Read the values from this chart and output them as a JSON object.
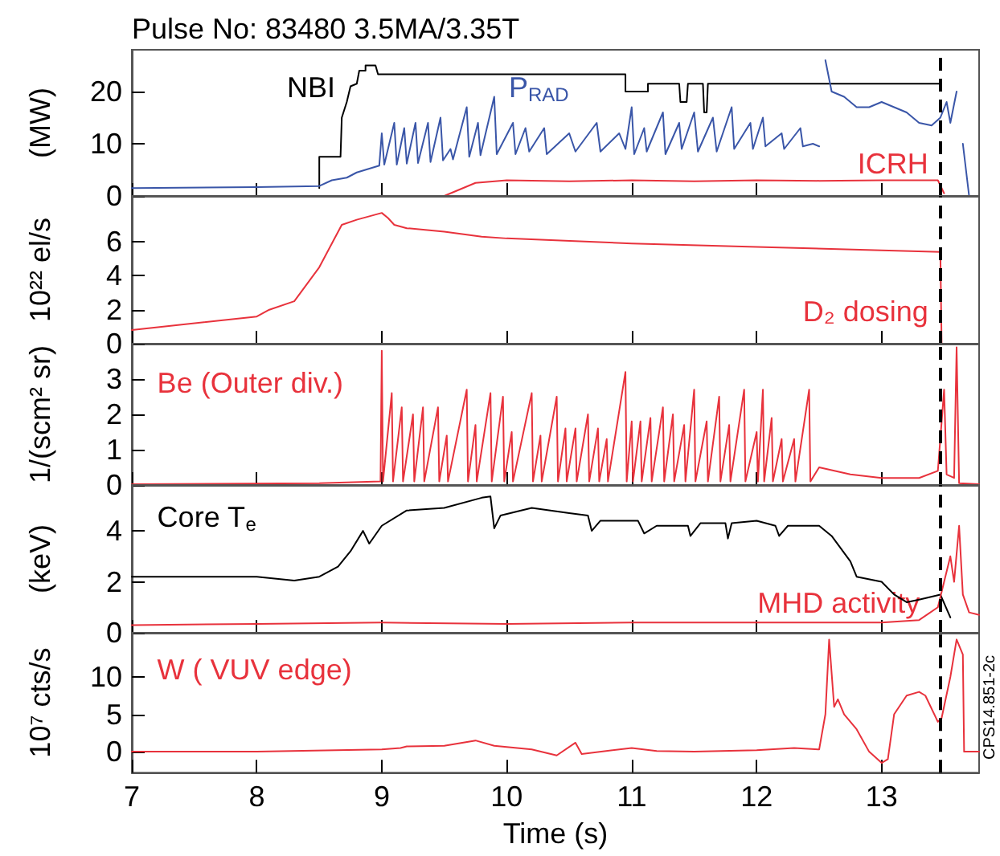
{
  "chart_data": [
    {
      "type": "line",
      "title": "Pulse No: 83480 3.5MA/3.35T",
      "ylabel": "(MW)",
      "xlim": [
        7,
        13.78
      ],
      "xticks": [
        7,
        8,
        9,
        10,
        11,
        12,
        13
      ],
      "ylim": [
        0,
        28
      ],
      "yticks": [
        0,
        10,
        20
      ],
      "tick_labels": "y",
      "grid": false,
      "ref_lines": [
        {
          "axis": "x",
          "value": 13.47,
          "color": "#000000",
          "line_style": "dashed"
        }
      ],
      "series": [
        {
          "name": "NBI",
          "color": "#000000",
          "x": [
            8.5,
            8.5,
            8.67,
            8.68,
            8.72,
            8.75,
            8.8,
            8.82,
            8.87,
            8.87,
            8.95,
            8.97,
            10.95,
            10.95,
            11.13,
            11.13,
            11.38,
            11.39,
            11.44,
            11.45,
            11.57,
            11.58,
            11.6,
            11.61,
            13.47
          ],
          "values": [
            1.5,
            7.5,
            7.5,
            15,
            18,
            21,
            21.5,
            24,
            24,
            25,
            25,
            23.3,
            23.3,
            20,
            20,
            21.5,
            21.5,
            18,
            18,
            21.5,
            21.5,
            16,
            16,
            21.5,
            21.5
          ]
        },
        {
          "name": "P$_{RAD}$",
          "color": "#3a56a8",
          "x": [
            7,
            8,
            8.5,
            8.6,
            8.72,
            8.8,
            8.98,
            9.0,
            9.02,
            9.1,
            9.12,
            9.18,
            9.2,
            9.27,
            9.29,
            9.37,
            9.39,
            9.47,
            9.49,
            9.55,
            9.57,
            9.68,
            9.7,
            9.77,
            9.79,
            9.9,
            9.92,
            10.05,
            10.07,
            10.15,
            10.18,
            10.3,
            10.32,
            10.5,
            10.55,
            10.72,
            10.75,
            10.9,
            10.95,
            11,
            11.02,
            11.1,
            11.12,
            11.25,
            11.27,
            11.38,
            11.4,
            11.5,
            11.53,
            11.65,
            11.68,
            11.8,
            11.82,
            11.95,
            11.97,
            12.05,
            12.07,
            12.2,
            12.22,
            12.35,
            12.37,
            12.45,
            12.5,
            12.52,
            12.55,
            12.6,
            12.7,
            12.8,
            12.9,
            13.0,
            13.1,
            13.2,
            13.3,
            13.4,
            13.47,
            13.52,
            13.55,
            13.6,
            13.62,
            13.65,
            13.7
          ],
          "values": [
            1.5,
            1.7,
            1.9,
            3,
            3.5,
            4.5,
            5.8,
            12,
            6,
            14,
            6,
            13,
            6.2,
            14,
            6.3,
            14,
            6.5,
            15,
            6.8,
            9,
            7,
            17,
            7.5,
            14,
            7.8,
            19,
            8,
            14,
            8,
            13,
            8.5,
            13,
            8,
            12,
            8.5,
            14,
            8.5,
            12,
            9,
            17,
            8,
            13,
            8.5,
            16,
            8,
            14,
            9,
            16,
            8.5,
            15,
            8.5,
            17,
            9,
            14,
            9,
            15,
            9.5,
            12,
            9,
            13,
            9.5,
            10,
            9.5,
            null,
            26,
            20,
            19,
            17,
            17,
            18,
            17,
            16,
            14,
            13.5,
            15,
            18,
            14,
            20,
            null,
            10,
            0
          ]
        },
        {
          "name": "ICRH",
          "color": "#e8323c",
          "x": [
            9.5,
            9.75,
            10,
            10.5,
            11,
            11.5,
            12,
            12.5,
            13,
            13.45,
            13.5
          ],
          "values": [
            0,
            2.5,
            3,
            2.8,
            3,
            2.8,
            3,
            2.9,
            3,
            3,
            0.5
          ]
        }
      ]
    },
    {
      "type": "line",
      "ylabel": "10²² el/s",
      "xlim": [
        7,
        13.78
      ],
      "xticks": [
        7,
        8,
        9,
        10,
        11,
        12,
        13
      ],
      "ylim": [
        0,
        8.7
      ],
      "yticks": [
        0,
        2,
        4,
        6
      ],
      "tick_labels": "y",
      "grid": false,
      "ref_lines": [
        {
          "axis": "x",
          "value": 13.47,
          "color": "#000000",
          "line_style": "dashed"
        }
      ],
      "series": [
        {
          "name": "D₂ dosing",
          "color": "#e8323c",
          "x": [
            7,
            8,
            8.1,
            8.3,
            8.5,
            8.68,
            8.8,
            9.0,
            9.05,
            9.1,
            9.2,
            9.5,
            9.8,
            10,
            11,
            12,
            13,
            13.47,
            13.48,
            13.78
          ],
          "values": [
            0.8,
            1.6,
            2,
            2.5,
            4.5,
            7.0,
            7.3,
            7.7,
            7.4,
            7.0,
            6.8,
            6.6,
            6.3,
            6.2,
            5.9,
            5.7,
            5.5,
            5.4,
            0,
            0
          ]
        }
      ]
    },
    {
      "type": "line",
      "ylabel": "1/(scm² sr)",
      "xlim": [
        7,
        13.78
      ],
      "xticks": [
        7,
        8,
        9,
        10,
        11,
        12,
        13
      ],
      "ylim": [
        0,
        4
      ],
      "yticks": [
        0,
        1,
        2,
        3
      ],
      "tick_labels": "y",
      "grid": false,
      "ref_lines": [
        {
          "axis": "x",
          "value": 13.47,
          "color": "#000000",
          "line_style": "dashed"
        }
      ],
      "series": [
        {
          "name": "Be (Outer div.)",
          "color": "#e8323c",
          "x": [
            7,
            8.5,
            8.99,
            9.0,
            9.01,
            9.08,
            9.09,
            9.16,
            9.17,
            9.25,
            9.26,
            9.33,
            9.34,
            9.45,
            9.46,
            9.52,
            9.53,
            9.68,
            9.69,
            9.75,
            9.76,
            9.87,
            9.88,
            9.97,
            9.98,
            10.04,
            10.05,
            10.2,
            10.21,
            10.27,
            10.28,
            10.4,
            10.41,
            10.47,
            10.48,
            10.55,
            10.56,
            10.65,
            10.66,
            10.73,
            10.74,
            10.8,
            10.81,
            10.95,
            10.96,
            11.0,
            11.01,
            11.07,
            11.08,
            11.15,
            11.16,
            11.25,
            11.26,
            11.33,
            11.34,
            11.42,
            11.43,
            11.5,
            11.51,
            11.6,
            11.61,
            11.7,
            11.71,
            11.78,
            11.79,
            11.9,
            11.91,
            12.0,
            12.01,
            12.05,
            12.06,
            12.12,
            12.13,
            12.2,
            12.21,
            12.3,
            12.31,
            12.42,
            12.43,
            12.5,
            12.75,
            13.0,
            13.3,
            13.45,
            13.5,
            13.52,
            13.58,
            13.6,
            13.62,
            13.78
          ],
          "values": [
            0.02,
            0.05,
            0.1,
            3.8,
            0.1,
            2.6,
            0.1,
            2.2,
            0.1,
            2.0,
            0.1,
            2.2,
            0.1,
            2.2,
            0.1,
            1.4,
            0.1,
            2.7,
            0.1,
            1.7,
            0.1,
            2.6,
            0.1,
            2.5,
            0.1,
            1.5,
            0.1,
            2.6,
            0.1,
            1.4,
            0.1,
            2.5,
            0.1,
            1.6,
            0.1,
            1.6,
            0.1,
            2.0,
            0.1,
            1.6,
            0.1,
            1.3,
            0.1,
            3.2,
            0.1,
            1.8,
            0.1,
            1.8,
            0.1,
            1.9,
            0.1,
            2.2,
            0.1,
            2.0,
            0.1,
            1.7,
            0.1,
            2.7,
            0.1,
            1.8,
            0.1,
            2.5,
            0.1,
            1.7,
            0.1,
            2.7,
            0.1,
            1.5,
            0.1,
            2.7,
            0.1,
            1.9,
            0.1,
            1.3,
            0.1,
            1.3,
            0.1,
            2.7,
            0.1,
            0.5,
            0.3,
            0.2,
            0.2,
            0.4,
            2.7,
            0.3,
            0.2,
            3.9,
            0.05,
            0.02
          ]
        }
      ]
    },
    {
      "type": "line",
      "ylabel": "(keV)",
      "xlim": [
        7,
        13.78
      ],
      "xticks": [
        7,
        8,
        9,
        10,
        11,
        12,
        13
      ],
      "ylim": [
        0,
        5.8
      ],
      "yticks": [
        0,
        2,
        4
      ],
      "tick_labels": "y",
      "grid": false,
      "ref_lines": [
        {
          "axis": "x",
          "value": 13.47,
          "color": "#000000",
          "line_style": "dashed"
        }
      ],
      "series": [
        {
          "name": "Core T$_{e}$",
          "color": "#000000",
          "x": [
            7,
            7.5,
            8,
            8.3,
            8.5,
            8.65,
            8.75,
            8.85,
            8.9,
            9.0,
            9.2,
            9.5,
            9.8,
            9.87,
            9.9,
            9.95,
            10.2,
            10.5,
            10.65,
            10.68,
            10.75,
            11.05,
            11.1,
            11.2,
            11.45,
            11.47,
            11.55,
            11.75,
            11.77,
            11.8,
            12.0,
            12.15,
            12.18,
            12.25,
            12.5,
            12.6,
            12.75,
            12.8,
            13.0,
            13.1,
            13.2,
            13.3,
            13.47,
            13.55
          ],
          "values": [
            2.2,
            2.2,
            2.2,
            2.05,
            2.2,
            2.6,
            3.2,
            4.0,
            3.5,
            4.2,
            4.8,
            4.9,
            5.3,
            5.35,
            4.1,
            4.6,
            4.9,
            4.7,
            4.6,
            4.0,
            4.4,
            4.4,
            3.9,
            4.2,
            4.2,
            3.8,
            4.3,
            4.3,
            3.7,
            4.3,
            4.4,
            4.2,
            3.8,
            4.2,
            4.2,
            3.8,
            2.8,
            2.2,
            2.0,
            1.5,
            1.2,
            1.3,
            1.5,
            0.6
          ]
        },
        {
          "name": "MHD activity",
          "color": "#e8323c",
          "x": [
            7,
            8,
            9,
            10,
            11,
            12,
            13,
            13.3,
            13.45,
            13.5,
            13.55,
            13.58,
            13.62,
            13.65,
            13.7,
            13.78
          ],
          "values": [
            0.3,
            0.35,
            0.4,
            0.35,
            0.4,
            0.4,
            0.4,
            0.5,
            1.0,
            2.0,
            3.0,
            2.0,
            4.2,
            1.5,
            0.8,
            0.7
          ]
        }
      ]
    },
    {
      "type": "line",
      "ylabel": "10⁷ cts/s",
      "xlabel": "Time (s)",
      "xlim": [
        7,
        13.78
      ],
      "xticks": [
        7,
        8,
        9,
        10,
        11,
        12,
        13
      ],
      "ylim": [
        -2.8,
        15.9
      ],
      "yticks": [
        0,
        5,
        10
      ],
      "grid": false,
      "annotations": [
        "CPS14.851-2c"
      ],
      "ref_lines": [
        {
          "axis": "x",
          "value": 13.47,
          "color": "#000000",
          "line_style": "dashed"
        }
      ],
      "series": [
        {
          "name": "W ( VUV edge)",
          "color": "#e8323c",
          "x": [
            7,
            8,
            9,
            9.15,
            9.2,
            9.5,
            9.75,
            9.9,
            10.2,
            10.4,
            10.55,
            10.6,
            11,
            11.2,
            11.5,
            12,
            12.3,
            12.5,
            12.55,
            12.58,
            12.62,
            12.65,
            12.7,
            12.8,
            12.9,
            13.0,
            13.05,
            13.1,
            13.2,
            13.3,
            13.35,
            13.45,
            13.48,
            13.55,
            13.6,
            13.65,
            13.66,
            13.78
          ],
          "values": [
            0,
            0,
            0.3,
            0.5,
            0.7,
            0.8,
            1.5,
            0.8,
            0.3,
            -0.5,
            1.2,
            -0.3,
            0.5,
            0.1,
            0,
            0.2,
            0.5,
            0.3,
            5,
            15,
            6,
            7,
            5,
            3,
            0,
            -1.5,
            -1,
            5,
            7.5,
            8,
            7.5,
            4,
            4.5,
            10,
            15,
            13,
            0,
            0
          ]
        }
      ]
    }
  ]
}
